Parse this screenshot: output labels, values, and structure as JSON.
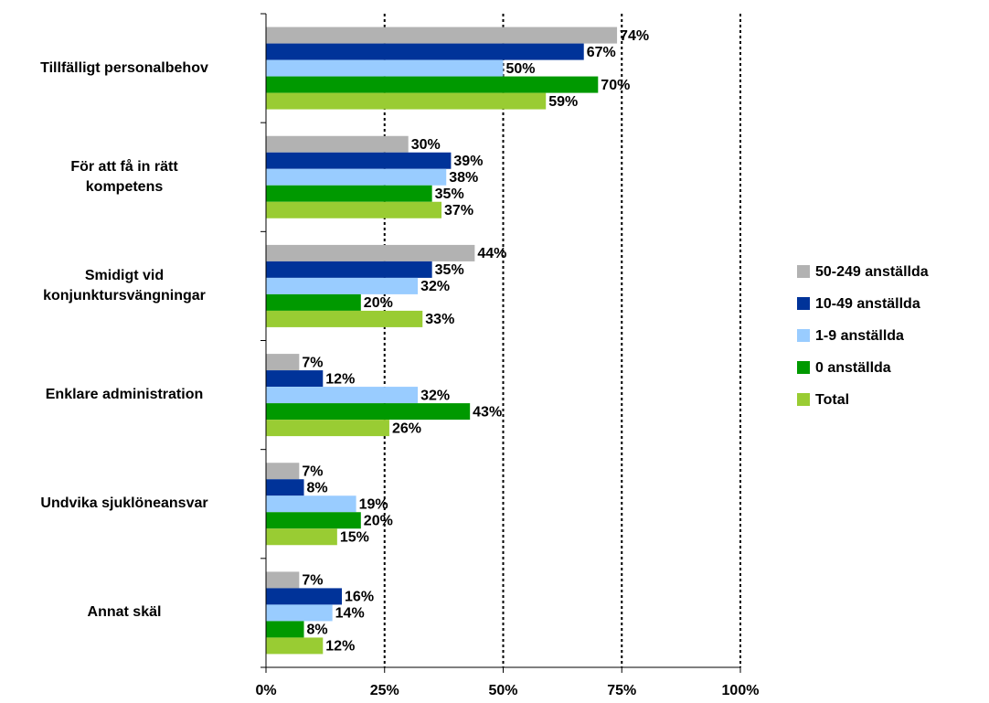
{
  "chart_data": {
    "type": "bar",
    "orientation": "horizontal",
    "categories": [
      "Tillfälligt personalbehov",
      "För att få in rätt\nkompetens",
      "Smidigt vid\nkonjunktursvängningar",
      "Enklare administration",
      "Undvika sjuklöneansvar",
      "Annat skäl"
    ],
    "series": [
      {
        "name": "50-249 anställda",
        "color": "#b2b2b2",
        "values": [
          74,
          30,
          44,
          7,
          7,
          7
        ],
        "value_labels": [
          "74%",
          "30%",
          "44%",
          "7%",
          "7%",
          "7%"
        ]
      },
      {
        "name": "10-49 anställda",
        "color": "#003399",
        "values": [
          67,
          39,
          35,
          12,
          8,
          16
        ],
        "value_labels": [
          "67%",
          "39%",
          "35%",
          "12%",
          "8%",
          "16%"
        ]
      },
      {
        "name": "1-9 anställda",
        "color": "#99ccff",
        "values": [
          50,
          38,
          32,
          32,
          19,
          14
        ],
        "value_labels": [
          "50%",
          "38%",
          "32%",
          "32%",
          "19%",
          "14%"
        ]
      },
      {
        "name": "0 anställda",
        "color": "#009900",
        "values": [
          70,
          35,
          20,
          43,
          20,
          8
        ],
        "value_labels": [
          "70%",
          "35%",
          "20%",
          "43%",
          "20%",
          "8%"
        ]
      },
      {
        "name": "Total",
        "color": "#99cc33",
        "values": [
          59,
          37,
          33,
          26,
          15,
          12
        ],
        "value_labels": [
          "59%",
          "37%",
          "33%",
          "26%",
          "15%",
          "12%"
        ]
      }
    ],
    "xlim": [
      0,
      100
    ],
    "xticks": [
      {
        "value": 0,
        "label": "0%"
      },
      {
        "value": 25,
        "label": "25%"
      },
      {
        "value": 50,
        "label": "50%"
      },
      {
        "value": 75,
        "label": "75%"
      },
      {
        "value": 100,
        "label": "100%"
      }
    ],
    "grid": true,
    "legend": "right"
  }
}
